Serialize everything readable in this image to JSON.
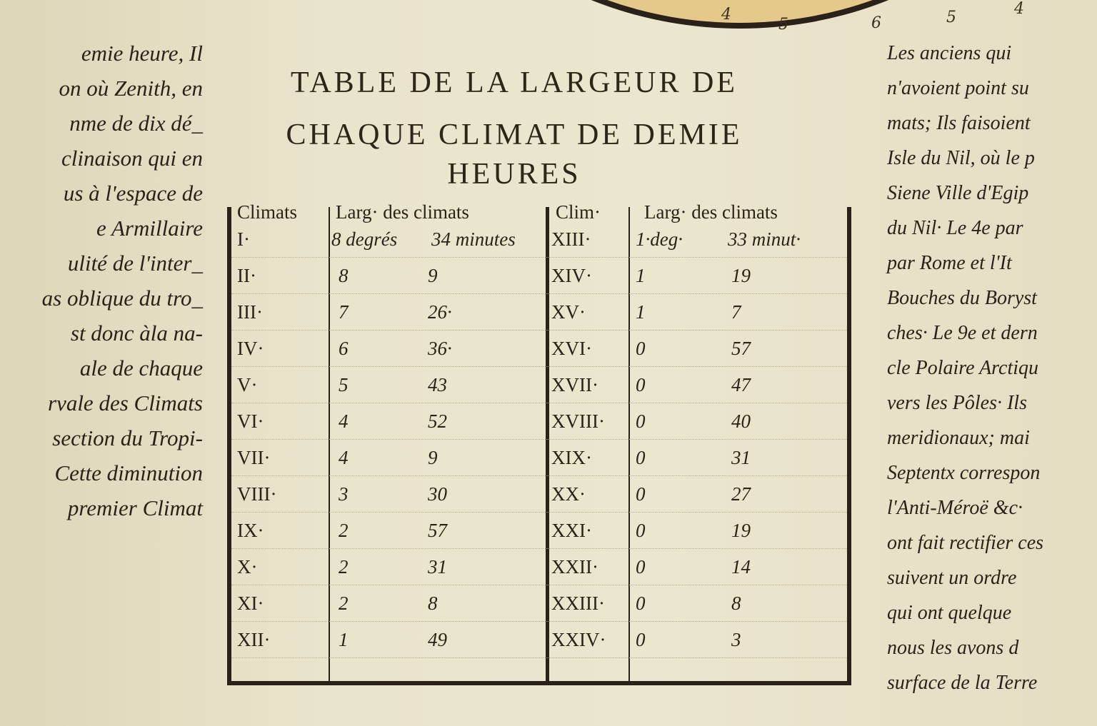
{
  "arc_numbers": [
    "4",
    "5",
    "6",
    "5",
    "4"
  ],
  "left_text": [
    "emie heure, Il",
    "on où Zenith, en",
    "nme de dix dé_",
    "clinaison qui en",
    "us à l'espace de",
    "e Armillaire",
    "ulité de l'inter_",
    "as oblique du tro_",
    "st donc àla na-",
    "ale de chaque",
    "rvale des Climats",
    "section du Tropi-",
    "Cette diminution",
    "premier Climat"
  ],
  "title": [
    "TABLE DE LA LARGEUR DE",
    "CHAQUE CLIMAT DE DEMIE",
    "HEURES"
  ],
  "table": {
    "headers": {
      "climats": "Climats",
      "larg1": "Larg· des climats",
      "clim": "Clim·",
      "larg2": "Larg· des climats"
    },
    "rows_left": [
      {
        "clim": "I·",
        "deg": "8 degrés",
        "min": "34 minutes"
      },
      {
        "clim": "II·",
        "deg": "8",
        "min": "9"
      },
      {
        "clim": "III·",
        "deg": "7",
        "min": "26·"
      },
      {
        "clim": "IV·",
        "deg": "6",
        "min": "36·"
      },
      {
        "clim": "V·",
        "deg": "5",
        "min": "43"
      },
      {
        "clim": "VI·",
        "deg": "4",
        "min": "52"
      },
      {
        "clim": "VII·",
        "deg": "4",
        "min": "9"
      },
      {
        "clim": "VIII·",
        "deg": "3",
        "min": "30"
      },
      {
        "clim": "IX·",
        "deg": "2",
        "min": "57"
      },
      {
        "clim": "X·",
        "deg": "2",
        "min": "31"
      },
      {
        "clim": "XI·",
        "deg": "2",
        "min": "8"
      },
      {
        "clim": "XII·",
        "deg": "1",
        "min": "49"
      }
    ],
    "rows_right": [
      {
        "clim": "XIII·",
        "deg": "1·deg·",
        "min": "33 minut·"
      },
      {
        "clim": "XIV·",
        "deg": "1",
        "min": "19"
      },
      {
        "clim": "XV·",
        "deg": "1",
        "min": "7"
      },
      {
        "clim": "XVI·",
        "deg": "0",
        "min": "57"
      },
      {
        "clim": "XVII·",
        "deg": "0",
        "min": "47"
      },
      {
        "clim": "XVIII·",
        "deg": "0",
        "min": "40"
      },
      {
        "clim": "XIX·",
        "deg": "0",
        "min": "31"
      },
      {
        "clim": "XX·",
        "deg": "0",
        "min": "27"
      },
      {
        "clim": "XXI·",
        "deg": "0",
        "min": "19"
      },
      {
        "clim": "XXII·",
        "deg": "0",
        "min": "14"
      },
      {
        "clim": "XXIII·",
        "deg": "0",
        "min": "8"
      },
      {
        "clim": "XXIV·",
        "deg": "0",
        "min": "3"
      }
    ]
  },
  "right_text": [
    "Les anciens qui",
    "n'avoient point su",
    "mats; Ils faisoient",
    "Isle du Nil, où le p",
    "Siene Ville d'Egip",
    "du Nil· Le 4e par",
    "par Rome et l'It",
    "Bouches du Boryst",
    "ches· Le 9e et dern",
    "cle Polaire Arctiqu",
    "vers les Pôles· Ils",
    "meridionaux; mai",
    "Septentx correspon",
    "l'Anti-Méroë &c·",
    "ont fait rectifier ces",
    "suivent un ordre",
    "qui ont quelque",
    "nous les avons d",
    "surface de la Terre"
  ]
}
